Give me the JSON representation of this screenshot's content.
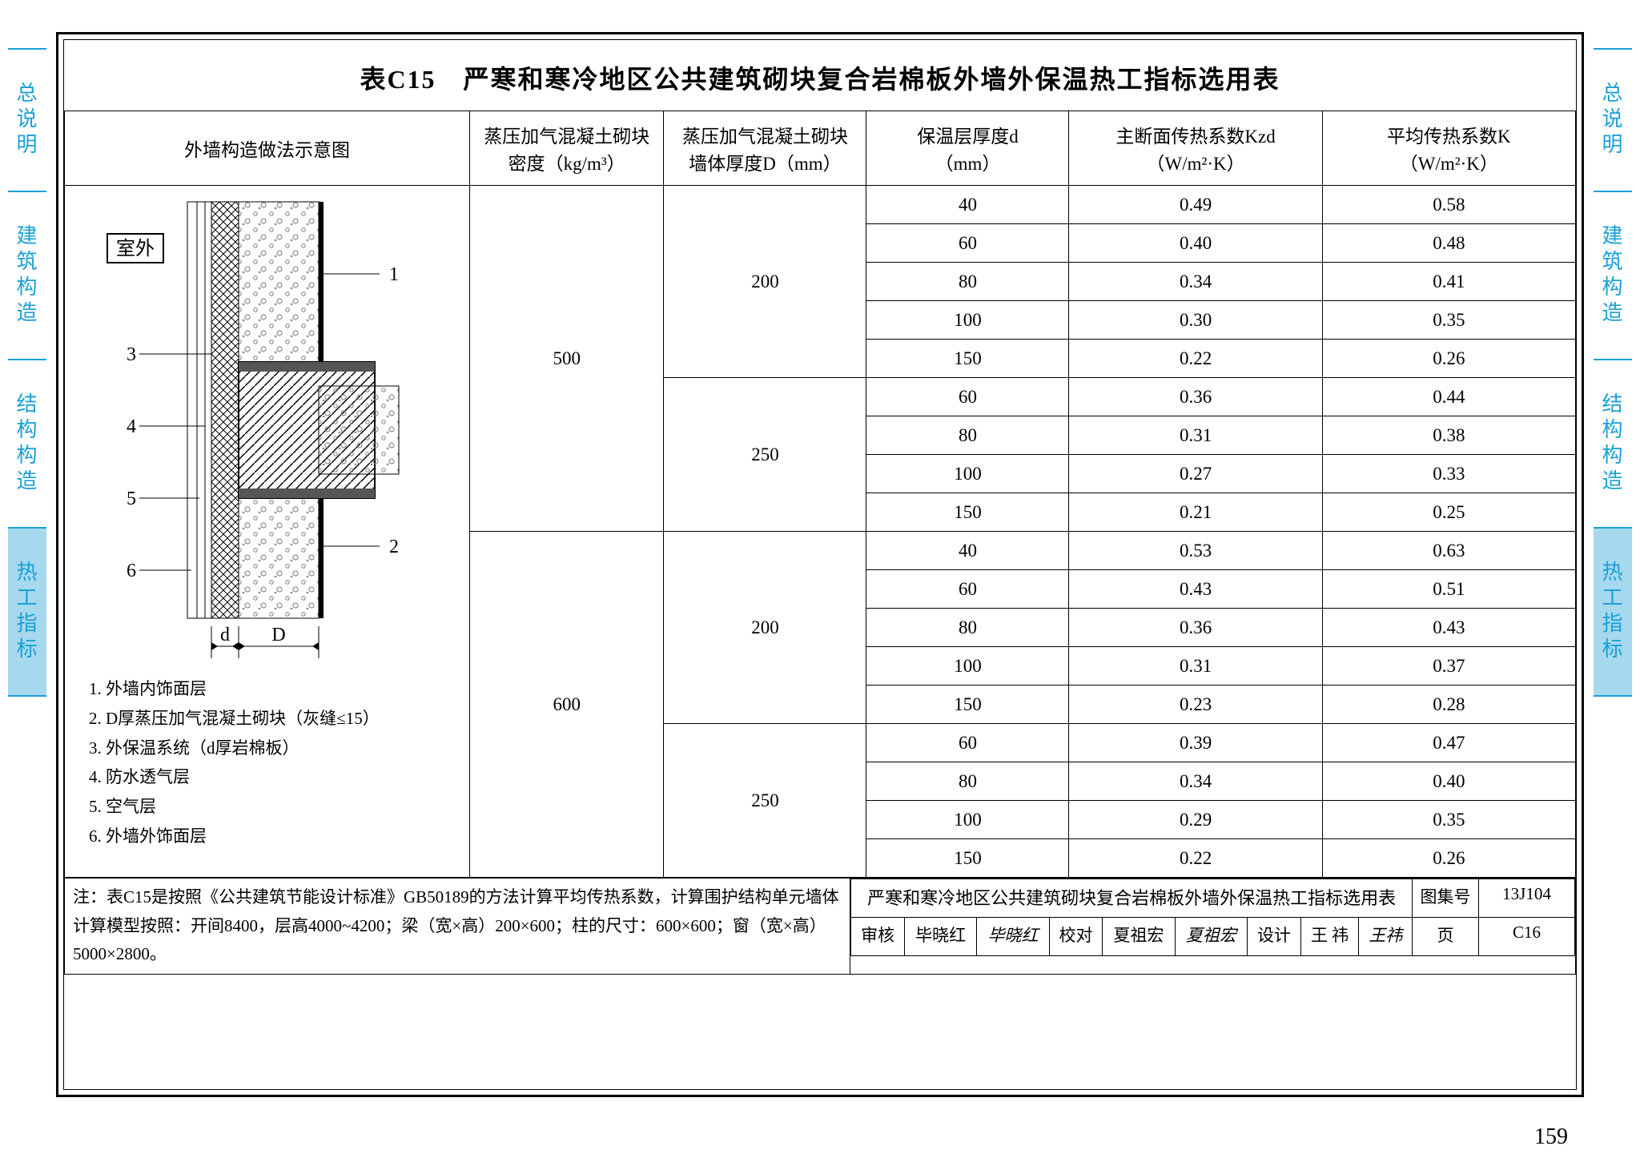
{
  "side_tabs": [
    "总说明",
    "建筑构造",
    "结构构造",
    "热工指标"
  ],
  "active_tab_index": 3,
  "title": "表C15　严寒和寒冷地区公共建筑砌块复合岩棉板外墙外保温热工指标选用表",
  "columns": {
    "diagram": "外墙构造做法示意图",
    "density": "蒸压加气混凝土砌块\n密度（kg/m³）",
    "D": "蒸压加气混凝土砌块\n墙体厚度D（mm）",
    "d": "保温层厚度d\n（mm）",
    "kzd": "主断面传热系数Kzd\n（W/m²·K）",
    "k": "平均传热系数K\n（W/m²·K）"
  },
  "diagram": {
    "outside_label": "室外",
    "dim_d": "d",
    "dim_D": "D",
    "callouts": [
      "1",
      "2",
      "3",
      "4",
      "5",
      "6"
    ]
  },
  "legend": [
    "1. 外墙内饰面层",
    "2. D厚蒸压加气混凝土砌块（灰缝≤15）",
    "3. 外保温系统（d厚岩棉板）",
    "4. 防水透气层",
    "5. 空气层",
    "6. 外墙外饰面层"
  ],
  "rows": [
    {
      "density": "500",
      "D": "200",
      "d": "40",
      "kzd": "0.49",
      "k": "0.58"
    },
    {
      "density": "500",
      "D": "200",
      "d": "60",
      "kzd": "0.40",
      "k": "0.48"
    },
    {
      "density": "500",
      "D": "200",
      "d": "80",
      "kzd": "0.34",
      "k": "0.41"
    },
    {
      "density": "500",
      "D": "200",
      "d": "100",
      "kzd": "0.30",
      "k": "0.35"
    },
    {
      "density": "500",
      "D": "200",
      "d": "150",
      "kzd": "0.22",
      "k": "0.26"
    },
    {
      "density": "500",
      "D": "250",
      "d": "60",
      "kzd": "0.36",
      "k": "0.44"
    },
    {
      "density": "500",
      "D": "250",
      "d": "80",
      "kzd": "0.31",
      "k": "0.38"
    },
    {
      "density": "500",
      "D": "250",
      "d": "100",
      "kzd": "0.27",
      "k": "0.33"
    },
    {
      "density": "500",
      "D": "250",
      "d": "150",
      "kzd": "0.21",
      "k": "0.25"
    },
    {
      "density": "600",
      "D": "200",
      "d": "40",
      "kzd": "0.53",
      "k": "0.63"
    },
    {
      "density": "600",
      "D": "200",
      "d": "60",
      "kzd": "0.43",
      "k": "0.51"
    },
    {
      "density": "600",
      "D": "200",
      "d": "80",
      "kzd": "0.36",
      "k": "0.43"
    },
    {
      "density": "600",
      "D": "200",
      "d": "100",
      "kzd": "0.31",
      "k": "0.37"
    },
    {
      "density": "600",
      "D": "200",
      "d": "150",
      "kzd": "0.23",
      "k": "0.28"
    },
    {
      "density": "600",
      "D": "250",
      "d": "60",
      "kzd": "0.39",
      "k": "0.47"
    },
    {
      "density": "600",
      "D": "250",
      "d": "80",
      "kzd": "0.34",
      "k": "0.40"
    },
    {
      "density": "600",
      "D": "250",
      "d": "100",
      "kzd": "0.29",
      "k": "0.35"
    },
    {
      "density": "600",
      "D": "250",
      "d": "150",
      "kzd": "0.22",
      "k": "0.26"
    }
  ],
  "note": "注：表C15是按照《公共建筑节能设计标准》GB50189的方法计算平均传热系数，计算围护结构单元墙体计算模型按照：开间8400，层高4000~4200；梁（宽×高）200×600；柱的尺寸：600×600；窗（宽×高）5000×2800。",
  "title_block": {
    "drawing_title": "严寒和寒冷地区公共建筑砌块复合岩棉板外墙外保温热工指标选用表",
    "set_label": "图集号",
    "set_no": "13J104",
    "review_label": "审核",
    "reviewer": "毕晓红",
    "reviewer_sig": "毕晓红",
    "check_label": "校对",
    "checker": "夏祖宏",
    "checker_sig": "夏祖宏",
    "design_label": "设计",
    "designer": "王 祎",
    "designer_sig": "王祎",
    "page_label": "页",
    "page_no": "C16"
  },
  "page_number": "159",
  "colors": {
    "tab_text": "#1aa0d8",
    "tab_active_bg": "#a6d8ee",
    "border": "#000000",
    "bg": "#ffffff"
  }
}
